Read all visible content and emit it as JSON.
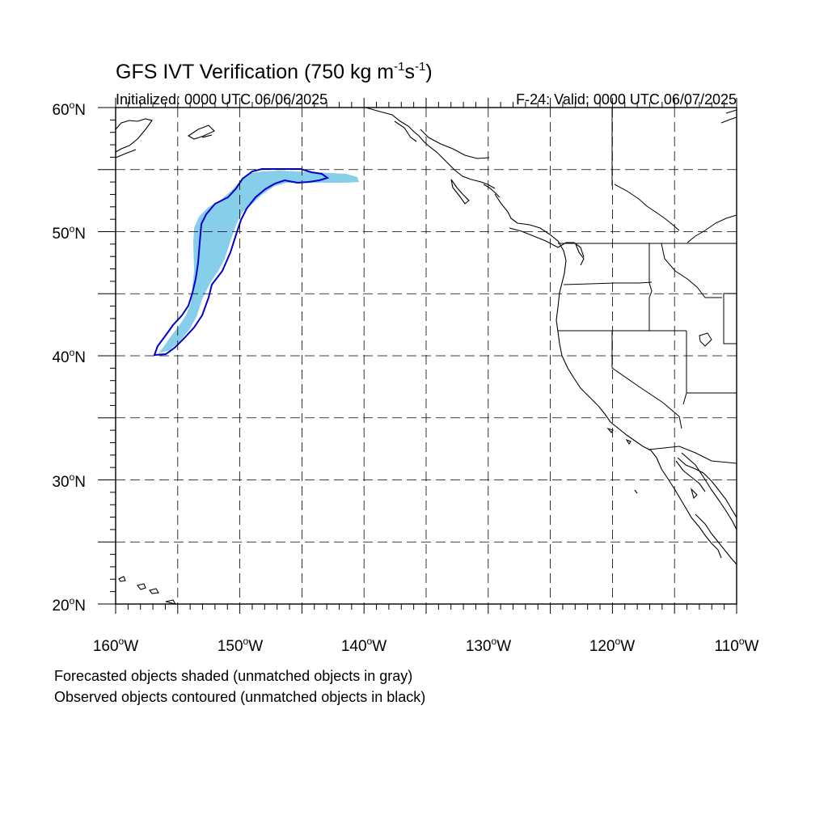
{
  "title": {
    "main": "GFS IVT Verification (750 kg m",
    "sup1": "-1",
    "mid": "s",
    "sup2": "-1",
    "close": ")"
  },
  "initialized": "Initialized: 0000 UTC 06/06/2025",
  "valid": "F-24: Valid: 0000 UTC 06/07/2025",
  "lat_labels": [
    {
      "deg": "60",
      "hemi": "N"
    },
    {
      "deg": "50",
      "hemi": "N"
    },
    {
      "deg": "40",
      "hemi": "N"
    },
    {
      "deg": "30",
      "hemi": "N"
    },
    {
      "deg": "20",
      "hemi": "N"
    }
  ],
  "lon_labels": [
    {
      "deg": "160",
      "hemi": "W"
    },
    {
      "deg": "150",
      "hemi": "W"
    },
    {
      "deg": "140",
      "hemi": "W"
    },
    {
      "deg": "130",
      "hemi": "W"
    },
    {
      "deg": "120",
      "hemi": "W"
    },
    {
      "deg": "110",
      "hemi": "W"
    }
  ],
  "degree_symbol": "o",
  "footnotes": [
    "Forecasted objects shaded (unmatched objects in gray)",
    "Observed objects contoured (unmatched objects in black)"
  ],
  "colors": {
    "forecast_fill": "#87ceeb",
    "observed_contour": "#0000cc",
    "coastline": "#000000",
    "grid": "#000000"
  },
  "map_extent": {
    "lon": [
      -160,
      -110
    ],
    "lat": [
      20,
      60
    ]
  }
}
